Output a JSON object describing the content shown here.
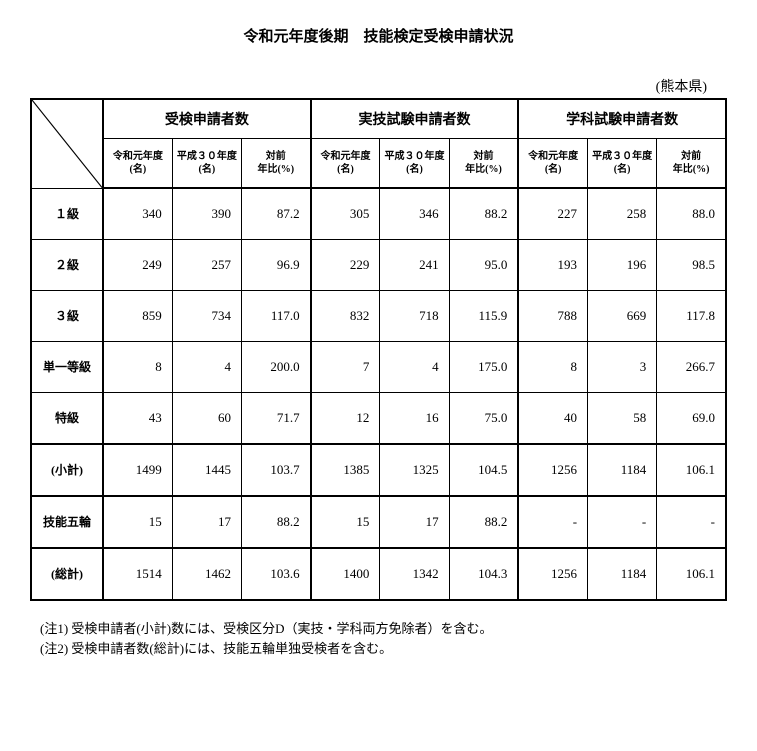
{
  "title": "令和元年度後期　技能検定受検申請状況",
  "region": "(熊本県)",
  "groups": [
    "受検申請者数",
    "実技試験申請者数",
    "学科試験申請者数"
  ],
  "subheaders": {
    "col_current": "令和元年度\n(名)",
    "col_prev": "平成３０年度\n(名)",
    "col_ratio": "対前\n年比(%)"
  },
  "rows": [
    {
      "label": "１級",
      "g1": [
        "340",
        "390",
        "87.2"
      ],
      "g2": [
        "305",
        "346",
        "88.2"
      ],
      "g3": [
        "227",
        "258",
        "88.0"
      ]
    },
    {
      "label": "２級",
      "g1": [
        "249",
        "257",
        "96.9"
      ],
      "g2": [
        "229",
        "241",
        "95.0"
      ],
      "g3": [
        "193",
        "196",
        "98.5"
      ]
    },
    {
      "label": "３級",
      "g1": [
        "859",
        "734",
        "117.0"
      ],
      "g2": [
        "832",
        "718",
        "115.9"
      ],
      "g3": [
        "788",
        "669",
        "117.8"
      ]
    },
    {
      "label": "単一等級",
      "g1": [
        "8",
        "4",
        "200.0"
      ],
      "g2": [
        "7",
        "4",
        "175.0"
      ],
      "g3": [
        "8",
        "3",
        "266.7"
      ]
    },
    {
      "label": "特級",
      "g1": [
        "43",
        "60",
        "71.7"
      ],
      "g2": [
        "12",
        "16",
        "75.0"
      ],
      "g3": [
        "40",
        "58",
        "69.0"
      ]
    },
    {
      "label": "(小計)",
      "g1": [
        "1499",
        "1445",
        "103.7"
      ],
      "g2": [
        "1385",
        "1325",
        "104.5"
      ],
      "g3": [
        "1256",
        "1184",
        "106.1"
      ]
    },
    {
      "label": "技能五輪",
      "g1": [
        "15",
        "17",
        "88.2"
      ],
      "g2": [
        "15",
        "17",
        "88.2"
      ],
      "g3": [
        "-",
        "-",
        "-"
      ]
    },
    {
      "label": "(総計)",
      "g1": [
        "1514",
        "1462",
        "103.6"
      ],
      "g2": [
        "1400",
        "1342",
        "104.3"
      ],
      "g3": [
        "1256",
        "1184",
        "106.1"
      ]
    }
  ],
  "notes": [
    "(注1)  受検申請者(小計)数には、受検区分D（実技・学科両方免除者）を含む。",
    "(注2)  受検申請者数(総計)には、技能五輪単独受検者を含む。"
  ],
  "dash": "-",
  "colors": {
    "border": "#000000",
    "background": "#ffffff",
    "text": "#000000"
  },
  "col_widths": {
    "label": "72px",
    "data": "auto"
  }
}
